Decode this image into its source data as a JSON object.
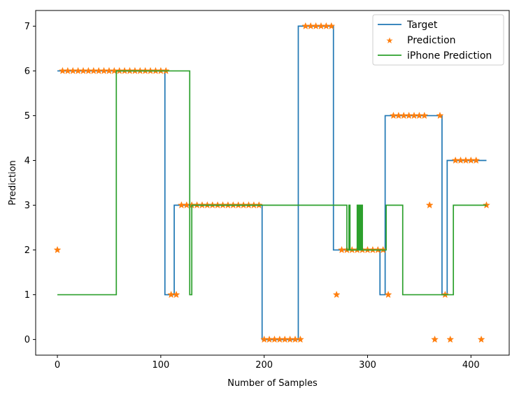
{
  "chart_data": {
    "type": "line",
    "title": "",
    "xlabel": "Number of Samples",
    "ylabel": "Prediction",
    "xlim": [
      -21,
      437
    ],
    "ylim": [
      -0.35,
      7.35
    ],
    "xticks": [
      0,
      100,
      200,
      300,
      400
    ],
    "yticks": [
      0,
      1,
      2,
      3,
      4,
      5,
      6,
      7
    ],
    "grid": false,
    "legend_position": "top-right",
    "colors": {
      "target": "#1f77b4",
      "prediction": "#ff7f0e",
      "iphone": "#2ca02c"
    },
    "series": [
      {
        "name": "Target",
        "style": "line",
        "points": [
          [
            0,
            6
          ],
          [
            104,
            6
          ],
          [
            104,
            1
          ],
          [
            113,
            1
          ],
          [
            113,
            3
          ],
          [
            198,
            3
          ],
          [
            198,
            0
          ],
          [
            233,
            0
          ],
          [
            233,
            7
          ],
          [
            267,
            7
          ],
          [
            267,
            2
          ],
          [
            312,
            2
          ],
          [
            312,
            1
          ],
          [
            317,
            1
          ],
          [
            317,
            5
          ],
          [
            372,
            5
          ],
          [
            372,
            1
          ],
          [
            377,
            1
          ],
          [
            377,
            4
          ],
          [
            415,
            4
          ]
        ]
      },
      {
        "name": "Prediction",
        "style": "markers",
        "points": [
          [
            0,
            2
          ],
          [
            5,
            6
          ],
          [
            10,
            6
          ],
          [
            15,
            6
          ],
          [
            20,
            6
          ],
          [
            25,
            6
          ],
          [
            30,
            6
          ],
          [
            35,
            6
          ],
          [
            40,
            6
          ],
          [
            45,
            6
          ],
          [
            50,
            6
          ],
          [
            55,
            6
          ],
          [
            60,
            6
          ],
          [
            65,
            6
          ],
          [
            70,
            6
          ],
          [
            75,
            6
          ],
          [
            80,
            6
          ],
          [
            85,
            6
          ],
          [
            90,
            6
          ],
          [
            95,
            6
          ],
          [
            100,
            6
          ],
          [
            105,
            6
          ],
          [
            110,
            1
          ],
          [
            115,
            1
          ],
          [
            120,
            3
          ],
          [
            125,
            3
          ],
          [
            130,
            3
          ],
          [
            135,
            3
          ],
          [
            140,
            3
          ],
          [
            145,
            3
          ],
          [
            150,
            3
          ],
          [
            155,
            3
          ],
          [
            160,
            3
          ],
          [
            165,
            3
          ],
          [
            170,
            3
          ],
          [
            175,
            3
          ],
          [
            180,
            3
          ],
          [
            185,
            3
          ],
          [
            190,
            3
          ],
          [
            195,
            3
          ],
          [
            200,
            0
          ],
          [
            205,
            0
          ],
          [
            210,
            0
          ],
          [
            215,
            0
          ],
          [
            220,
            0
          ],
          [
            225,
            0
          ],
          [
            230,
            0
          ],
          [
            235,
            0
          ],
          [
            240,
            7
          ],
          [
            245,
            7
          ],
          [
            250,
            7
          ],
          [
            255,
            7
          ],
          [
            260,
            7
          ],
          [
            265,
            7
          ],
          [
            270,
            1
          ],
          [
            275,
            2
          ],
          [
            280,
            2
          ],
          [
            285,
            2
          ],
          [
            290,
            2
          ],
          [
            295,
            2
          ],
          [
            300,
            2
          ],
          [
            305,
            2
          ],
          [
            310,
            2
          ],
          [
            315,
            2
          ],
          [
            320,
            1
          ],
          [
            325,
            5
          ],
          [
            330,
            5
          ],
          [
            335,
            5
          ],
          [
            340,
            5
          ],
          [
            345,
            5
          ],
          [
            350,
            5
          ],
          [
            355,
            5
          ],
          [
            360,
            3
          ],
          [
            365,
            0
          ],
          [
            370,
            5
          ],
          [
            375,
            1
          ],
          [
            380,
            0
          ],
          [
            385,
            4
          ],
          [
            390,
            4
          ],
          [
            395,
            4
          ],
          [
            400,
            4
          ],
          [
            405,
            4
          ],
          [
            410,
            0
          ],
          [
            415,
            3
          ]
        ]
      },
      {
        "name": "iPhone Prediction",
        "style": "line",
        "points": [
          [
            0,
            1
          ],
          [
            57,
            1
          ],
          [
            57,
            6
          ],
          [
            128,
            6
          ],
          [
            128,
            1
          ],
          [
            130,
            1
          ],
          [
            130,
            3
          ],
          [
            280,
            3
          ],
          [
            280,
            2
          ],
          [
            282,
            2
          ],
          [
            282,
            3
          ],
          [
            283,
            3
          ],
          [
            283,
            2
          ],
          [
            290,
            2
          ],
          [
            290,
            3
          ],
          [
            291,
            3
          ],
          [
            291,
            2
          ],
          [
            292,
            2
          ],
          [
            292,
            3
          ],
          [
            293,
            3
          ],
          [
            293,
            2
          ],
          [
            294,
            2
          ],
          [
            294,
            3
          ],
          [
            295,
            3
          ],
          [
            295,
            2
          ],
          [
            318,
            2
          ],
          [
            318,
            3
          ],
          [
            334,
            3
          ],
          [
            334,
            1
          ],
          [
            383,
            1
          ],
          [
            383,
            3
          ],
          [
            415,
            3
          ]
        ]
      }
    ]
  }
}
